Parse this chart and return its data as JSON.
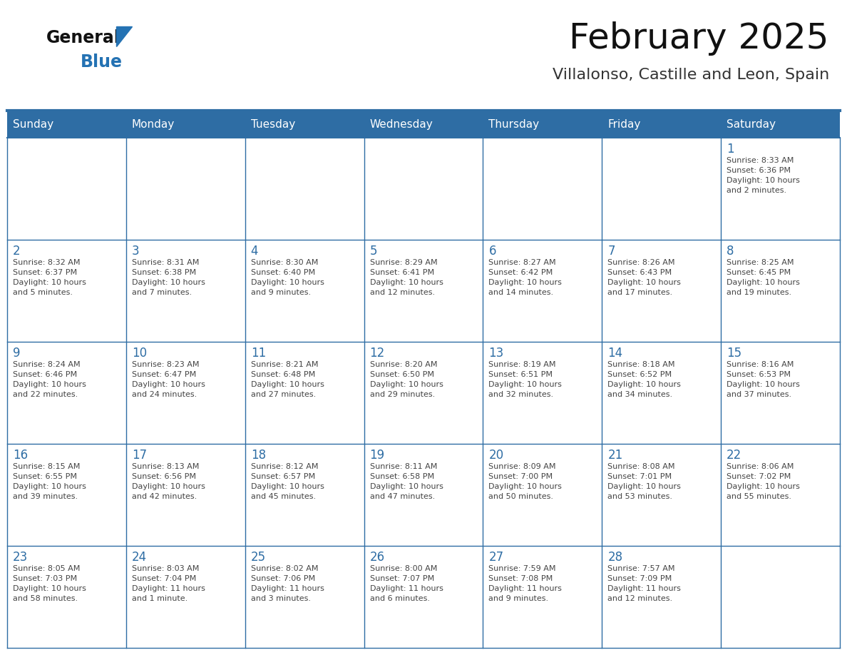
{
  "title": "February 2025",
  "subtitle": "Villalonso, Castille and Leon, Spain",
  "header_bg": "#2E6DA4",
  "header_text_color": "#FFFFFF",
  "weekdays": [
    "Sunday",
    "Monday",
    "Tuesday",
    "Wednesday",
    "Thursday",
    "Friday",
    "Saturday"
  ],
  "cell_bg": "#FFFFFF",
  "row0_bg": "#F0F0F0",
  "grid_line_color": "#2E6DA4",
  "day_number_color": "#2E6DA4",
  "info_text_color": "#444444",
  "logo_general_color": "#111111",
  "logo_blue_color": "#2472B3",
  "days": [
    {
      "day": 1,
      "col": 6,
      "row": 0,
      "sunrise": "8:33 AM",
      "sunset": "6:36 PM",
      "daylight": "10 hours and 2 minutes."
    },
    {
      "day": 2,
      "col": 0,
      "row": 1,
      "sunrise": "8:32 AM",
      "sunset": "6:37 PM",
      "daylight": "10 hours and 5 minutes."
    },
    {
      "day": 3,
      "col": 1,
      "row": 1,
      "sunrise": "8:31 AM",
      "sunset": "6:38 PM",
      "daylight": "10 hours and 7 minutes."
    },
    {
      "day": 4,
      "col": 2,
      "row": 1,
      "sunrise": "8:30 AM",
      "sunset": "6:40 PM",
      "daylight": "10 hours and 9 minutes."
    },
    {
      "day": 5,
      "col": 3,
      "row": 1,
      "sunrise": "8:29 AM",
      "sunset": "6:41 PM",
      "daylight": "10 hours and 12 minutes."
    },
    {
      "day": 6,
      "col": 4,
      "row": 1,
      "sunrise": "8:27 AM",
      "sunset": "6:42 PM",
      "daylight": "10 hours and 14 minutes."
    },
    {
      "day": 7,
      "col": 5,
      "row": 1,
      "sunrise": "8:26 AM",
      "sunset": "6:43 PM",
      "daylight": "10 hours and 17 minutes."
    },
    {
      "day": 8,
      "col": 6,
      "row": 1,
      "sunrise": "8:25 AM",
      "sunset": "6:45 PM",
      "daylight": "10 hours and 19 minutes."
    },
    {
      "day": 9,
      "col": 0,
      "row": 2,
      "sunrise": "8:24 AM",
      "sunset": "6:46 PM",
      "daylight": "10 hours and 22 minutes."
    },
    {
      "day": 10,
      "col": 1,
      "row": 2,
      "sunrise": "8:23 AM",
      "sunset": "6:47 PM",
      "daylight": "10 hours and 24 minutes."
    },
    {
      "day": 11,
      "col": 2,
      "row": 2,
      "sunrise": "8:21 AM",
      "sunset": "6:48 PM",
      "daylight": "10 hours and 27 minutes."
    },
    {
      "day": 12,
      "col": 3,
      "row": 2,
      "sunrise": "8:20 AM",
      "sunset": "6:50 PM",
      "daylight": "10 hours and 29 minutes."
    },
    {
      "day": 13,
      "col": 4,
      "row": 2,
      "sunrise": "8:19 AM",
      "sunset": "6:51 PM",
      "daylight": "10 hours and 32 minutes."
    },
    {
      "day": 14,
      "col": 5,
      "row": 2,
      "sunrise": "8:18 AM",
      "sunset": "6:52 PM",
      "daylight": "10 hours and 34 minutes."
    },
    {
      "day": 15,
      "col": 6,
      "row": 2,
      "sunrise": "8:16 AM",
      "sunset": "6:53 PM",
      "daylight": "10 hours and 37 minutes."
    },
    {
      "day": 16,
      "col": 0,
      "row": 3,
      "sunrise": "8:15 AM",
      "sunset": "6:55 PM",
      "daylight": "10 hours and 39 minutes."
    },
    {
      "day": 17,
      "col": 1,
      "row": 3,
      "sunrise": "8:13 AM",
      "sunset": "6:56 PM",
      "daylight": "10 hours and 42 minutes."
    },
    {
      "day": 18,
      "col": 2,
      "row": 3,
      "sunrise": "8:12 AM",
      "sunset": "6:57 PM",
      "daylight": "10 hours and 45 minutes."
    },
    {
      "day": 19,
      "col": 3,
      "row": 3,
      "sunrise": "8:11 AM",
      "sunset": "6:58 PM",
      "daylight": "10 hours and 47 minutes."
    },
    {
      "day": 20,
      "col": 4,
      "row": 3,
      "sunrise": "8:09 AM",
      "sunset": "7:00 PM",
      "daylight": "10 hours and 50 minutes."
    },
    {
      "day": 21,
      "col": 5,
      "row": 3,
      "sunrise": "8:08 AM",
      "sunset": "7:01 PM",
      "daylight": "10 hours and 53 minutes."
    },
    {
      "day": 22,
      "col": 6,
      "row": 3,
      "sunrise": "8:06 AM",
      "sunset": "7:02 PM",
      "daylight": "10 hours and 55 minutes."
    },
    {
      "day": 23,
      "col": 0,
      "row": 4,
      "sunrise": "8:05 AM",
      "sunset": "7:03 PM",
      "daylight": "10 hours and 58 minutes."
    },
    {
      "day": 24,
      "col": 1,
      "row": 4,
      "sunrise": "8:03 AM",
      "sunset": "7:04 PM",
      "daylight": "11 hours and 1 minute."
    },
    {
      "day": 25,
      "col": 2,
      "row": 4,
      "sunrise": "8:02 AM",
      "sunset": "7:06 PM",
      "daylight": "11 hours and 3 minutes."
    },
    {
      "day": 26,
      "col": 3,
      "row": 4,
      "sunrise": "8:00 AM",
      "sunset": "7:07 PM",
      "daylight": "11 hours and 6 minutes."
    },
    {
      "day": 27,
      "col": 4,
      "row": 4,
      "sunrise": "7:59 AM",
      "sunset": "7:08 PM",
      "daylight": "11 hours and 9 minutes."
    },
    {
      "day": 28,
      "col": 5,
      "row": 4,
      "sunrise": "7:57 AM",
      "sunset": "7:09 PM",
      "daylight": "11 hours and 12 minutes."
    }
  ]
}
